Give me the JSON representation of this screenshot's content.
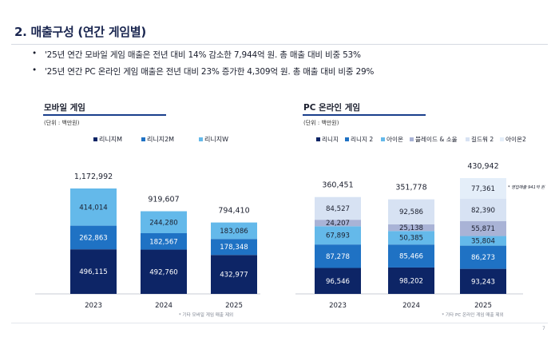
{
  "page": {
    "title": "2. 매출구성 (연간 게임별)",
    "bullets": [
      "'25년 연간 모바일 게임 매출은 전년 대비 14% 감소한 7,944억 원. 총 매출 대비 비중 53%",
      "'25년 연간 PC 온라인 게임 매출은 전년 대비 23% 증가한 4,309억 원. 총 매출 대비 비중 29%"
    ],
    "bullet_marker": "•",
    "page_number": "7"
  },
  "chart_data": [
    {
      "type": "bar",
      "stacked": true,
      "title": "모바일 게임",
      "unit_label": "(단위 : 백만원)",
      "categories": [
        "2023",
        "2024",
        "2025"
      ],
      "series": [
        {
          "name": "리니지M",
          "color": "#0d2566",
          "values": [
            496115,
            492760,
            432977
          ]
        },
        {
          "name": "리니지2M",
          "color": "#1f72c4",
          "values": [
            262863,
            182567,
            178348
          ]
        },
        {
          "name": "리니지W",
          "color": "#64b9ea",
          "values": [
            414014,
            244280,
            183086
          ]
        }
      ],
      "totals": [
        1172992,
        919607,
        794410
      ],
      "legend_position": "top",
      "grid": false,
      "ylim": [
        0,
        1172992
      ],
      "footnote": "* 기타 모바일 게임 매출 제외"
    },
    {
      "type": "bar",
      "stacked": true,
      "title": "PC 온라인 게임",
      "unit_label": "(단위 : 백만원)",
      "categories": [
        "2023",
        "2024",
        "2025"
      ],
      "series": [
        {
          "name": "리니지",
          "color": "#0d2566",
          "values": [
            96546,
            98202,
            93243
          ]
        },
        {
          "name": "리니지 2",
          "color": "#1f72c4",
          "values": [
            87278,
            85466,
            86273
          ]
        },
        {
          "name": "아이온",
          "color": "#64b9ea",
          "values": [
            67893,
            50385,
            35804
          ]
        },
        {
          "name": "블레이드 & 소울",
          "color": "#a9b3d6",
          "values": [
            24207,
            25138,
            55871
          ]
        },
        {
          "name": "길드워 2",
          "color": "#d7e2f3",
          "values": [
            84527,
            92586,
            82390
          ]
        },
        {
          "name": "아이온2",
          "color": "#e4eef9",
          "values": [
            null,
            null,
            77361
          ]
        }
      ],
      "totals": [
        360451,
        351778,
        430942
      ],
      "annotation": "* 영업매출 941억 원",
      "legend_position": "top",
      "grid": false,
      "ylim": [
        0,
        430942
      ],
      "footnote": "* 기타 PC 온라인 게임 매출 제외"
    }
  ]
}
